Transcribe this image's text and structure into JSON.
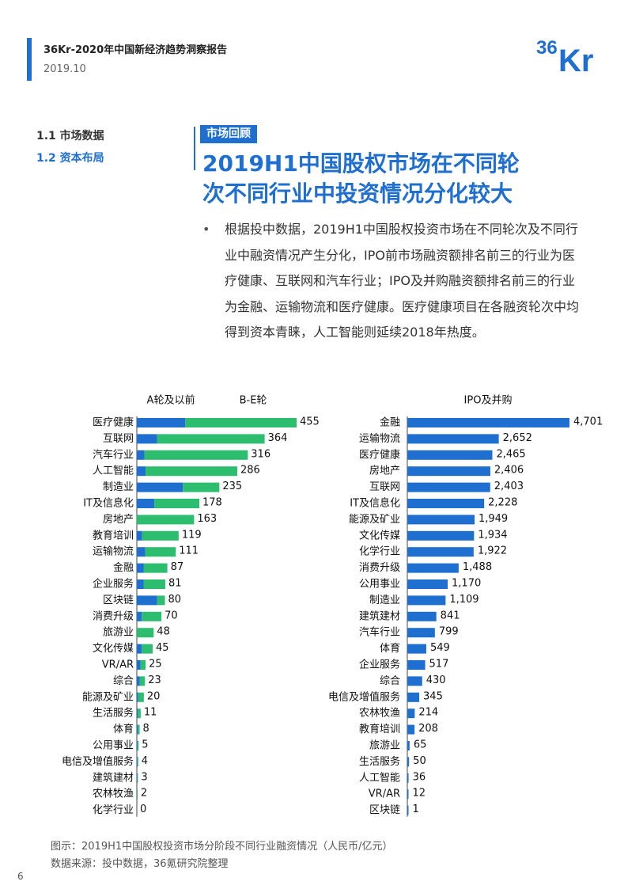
{
  "header": {
    "report_title": "36Kr-2020年中国新经济趋势洞察报告",
    "date": "2019.10",
    "logo_text": "36Kr"
  },
  "nav": {
    "items": [
      {
        "label": "1.1 市场数据",
        "active": false
      },
      {
        "label": "1.2 资本布局",
        "active": true
      }
    ]
  },
  "section": {
    "tag": "市场回顾",
    "headline_line1": "2019H1中国股权市场在不同轮",
    "headline_line2": "次不同行业中投资情况分化较大",
    "bullet": "•",
    "paragraph": "根据投中数据，2019H1中国股权投资市场在不同轮次及不同行业中融资情况产生分化，IPO前市场融资额排名前三的行业为医疗健康、互联网和汽车行业；IPO及并购融资额排名前三的行业为金融、运输物流和医疗健康。医疗健康项目在各融资轮次中均得到资本青睐，人工智能则延续2018年热度。"
  },
  "colors": {
    "accent": "#1f6fd1",
    "series_a": "#1f6fd1",
    "series_be": "#2dbd6e",
    "series_ipo": "#1f6fd1"
  },
  "chart_data": [
    {
      "type": "bar",
      "orientation": "horizontal",
      "stacked": true,
      "categories": [
        "医疗健康",
        "互联网",
        "汽车行业",
        "人工智能",
        "制造业",
        "IT及信息化",
        "房地产",
        "教育培训",
        "运输物流",
        "金融",
        "企业服务",
        "区块链",
        "消费升级",
        "旅游业",
        "文化传媒",
        "VR/AR",
        "综合",
        "能源及矿业",
        "生活服务",
        "体育",
        "公用事业",
        "电信及增值服务",
        "建筑建材",
        "农林牧渔",
        "化学行业"
      ],
      "totals": [
        455,
        364,
        316,
        286,
        235,
        178,
        163,
        119,
        111,
        87,
        81,
        80,
        70,
        48,
        45,
        25,
        23,
        20,
        11,
        8,
        5,
        4,
        3,
        2,
        0
      ],
      "total_labels": [
        "455",
        "364",
        "316",
        "286",
        "235",
        "178",
        "163",
        "119",
        "111",
        "87",
        "81",
        "80",
        "70",
        "48",
        "45",
        "25",
        "23",
        "20",
        "11",
        "8",
        "5",
        "4",
        "3",
        "2",
        "0"
      ],
      "series": [
        {
          "name": "A轮及以前",
          "values": [
            138,
            58,
            22,
            25,
            131,
            50,
            0,
            15,
            24,
            20,
            20,
            58,
            14,
            0,
            14,
            10,
            8,
            4,
            3,
            3,
            2,
            2,
            2,
            1,
            0
          ]
        },
        {
          "name": "B-E轮",
          "values": [
            317,
            306,
            294,
            261,
            104,
            128,
            163,
            104,
            87,
            67,
            61,
            22,
            56,
            48,
            31,
            15,
            15,
            16,
            8,
            5,
            3,
            2,
            1,
            1,
            0
          ]
        }
      ],
      "xlim": [
        0,
        455
      ]
    },
    {
      "type": "bar",
      "orientation": "horizontal",
      "categories": [
        "金融",
        "运输物流",
        "医疗健康",
        "房地产",
        "互联网",
        "IT及信息化",
        "能源及矿业",
        "文化传媒",
        "化学行业",
        "消费升级",
        "公用事业",
        "制造业",
        "建筑建材",
        "汽车行业",
        "体育",
        "企业服务",
        "综合",
        "电信及增值服务",
        "农林牧渔",
        "教育培训",
        "旅游业",
        "生活服务",
        "人工智能",
        "VR/AR",
        "区块链"
      ],
      "series": [
        {
          "name": "IPO及并购",
          "values": [
            4701,
            2652,
            2465,
            2406,
            2403,
            2228,
            1949,
            1934,
            1922,
            1488,
            1170,
            1109,
            841,
            799,
            549,
            517,
            430,
            345,
            214,
            208,
            65,
            50,
            36,
            12,
            1
          ]
        }
      ],
      "value_labels": [
        "4,701",
        "2,652",
        "2,465",
        "2,406",
        "2,403",
        "2,228",
        "1,949",
        "1,934",
        "1,922",
        "1,488",
        "1,170",
        "1,109",
        "841",
        "799",
        "549",
        "517",
        "430",
        "345",
        "214",
        "208",
        "65",
        "50",
        "36",
        "12",
        "1"
      ],
      "xlim": [
        0,
        4701
      ]
    }
  ],
  "figure": {
    "caption": "图示：2019H1中国股权投资市场分阶段不同行业融资情况（人民币/亿元）",
    "source": "数据来源：投中数据，36氪研究院整理"
  },
  "page_number": "6"
}
